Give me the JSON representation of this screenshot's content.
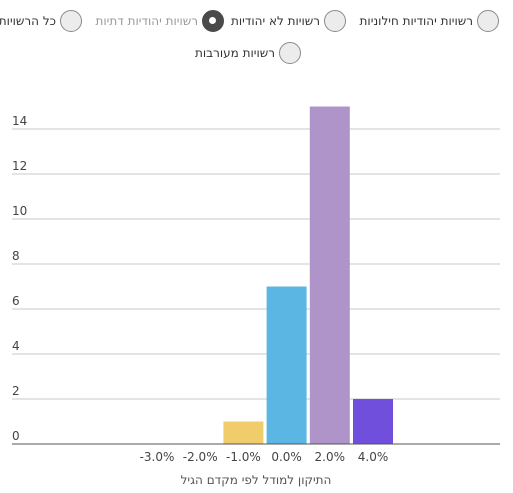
{
  "filters": {
    "options": [
      {
        "label": "רשויות יהודיות חילוניות",
        "selected": false
      },
      {
        "label": "רשויות לא יהודיות",
        "selected": false
      },
      {
        "label": "רשויות יהודיות דתיות",
        "selected": true
      },
      {
        "label": "כל הרשויות",
        "selected": false
      },
      {
        "label": "רשויות מעורבות",
        "selected": false
      }
    ]
  },
  "chart_data": {
    "type": "bar",
    "categories": [
      "-3.0%",
      "-2.0%",
      "-1.0%",
      "0.0%",
      "2.0%",
      "4.0%"
    ],
    "values": [
      0,
      0,
      1,
      7,
      15,
      2
    ],
    "colors": [
      "#f0cd6a",
      "#f0cd6a",
      "#f0cd6a",
      "#5bb6e3",
      "#ae94c9",
      "#6f4fdc"
    ],
    "xlabel": "התיקון למודל לפי מקדם הגיל",
    "ylabel": "",
    "yticks": [
      0,
      2,
      4,
      6,
      8,
      10,
      12,
      14
    ],
    "ylim": [
      0,
      15
    ],
    "grid": true
  }
}
